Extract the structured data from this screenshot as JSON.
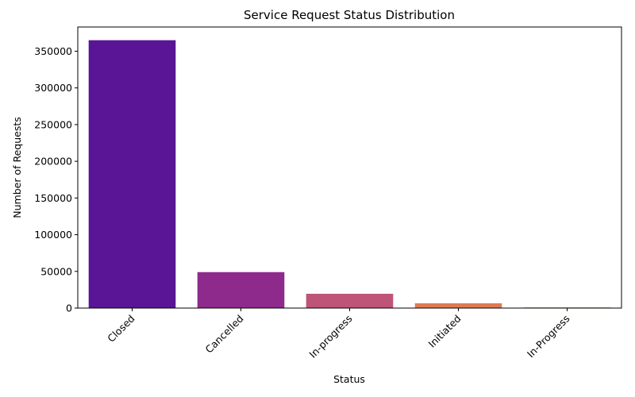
{
  "chart_data": {
    "type": "bar",
    "title": "Service Request Status Distribution",
    "xlabel": "Status",
    "ylabel": "Number of Requests",
    "categories": [
      "Closed",
      "Cancelled",
      "In-progress",
      "Initiated",
      "In-Progress"
    ],
    "values": [
      365000,
      49000,
      19500,
      6500,
      1000
    ],
    "colors": [
      "#5a1596",
      "#8e2a8c",
      "#be5477",
      "#e07a55",
      "#e9b83a"
    ],
    "ylim": [
      0,
      383000
    ],
    "yticks": [
      0,
      50000,
      100000,
      150000,
      200000,
      250000,
      300000,
      350000
    ],
    "ytick_labels": [
      "0",
      "50000",
      "100000",
      "150000",
      "200000",
      "250000",
      "300000",
      "350000"
    ],
    "grid": false,
    "legend": "none"
  }
}
